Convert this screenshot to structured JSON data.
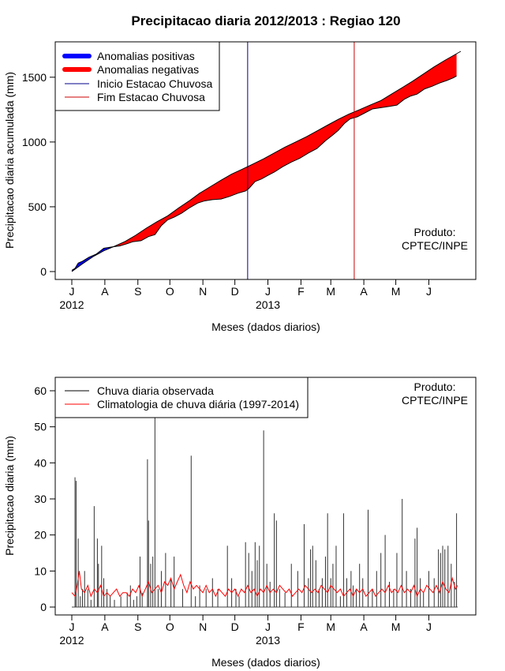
{
  "title": "Precipitacao diaria 2012/2013 : Regiao 120",
  "chart_data": [
    {
      "type": "area",
      "ylabel": "Precipitacao diaria acumulada (mm)",
      "xlabel": "Meses (dados diarios)",
      "xlim_days": [
        0,
        365
      ],
      "ylim": [
        0,
        1700
      ],
      "yticks": [
        0,
        500,
        1000,
        1500
      ],
      "month_ticks": [
        {
          "label": "J",
          "day": 0
        },
        {
          "label": "A",
          "day": 31
        },
        {
          "label": "S",
          "day": 62
        },
        {
          "label": "O",
          "day": 92
        },
        {
          "label": "N",
          "day": 123
        },
        {
          "label": "D",
          "day": 153
        },
        {
          "label": "J",
          "day": 184
        },
        {
          "label": "F",
          "day": 215
        },
        {
          "label": "M",
          "day": 243
        },
        {
          "label": "A",
          "day": 274
        },
        {
          "label": "M",
          "day": 304
        },
        {
          "label": "J",
          "day": 335
        }
      ],
      "year_labels": [
        {
          "label": "2012",
          "day": 0
        },
        {
          "label": "2013",
          "day": 184
        }
      ],
      "wet_season_start_day": 165,
      "wet_season_end_day": 265,
      "product_label": [
        "Produto:",
        "CPTEC/INPE"
      ],
      "legend": [
        {
          "label": "Anomalias positivas",
          "color": "#0000ff",
          "style": "thick"
        },
        {
          "label": "Anomalias negativas",
          "color": "#ff0000",
          "style": "thick"
        },
        {
          "label": "Inicio Estacao Chuvosa",
          "color": "#00008b",
          "style": "thin"
        },
        {
          "label": "Fim Estacao Chuvosa",
          "color": "#cc0000",
          "style": "thin"
        }
      ],
      "climatology_cumulative": [
        [
          0,
          0
        ],
        [
          10,
          60
        ],
        [
          20,
          115
        ],
        [
          30,
          160
        ],
        [
          40,
          195
        ],
        [
          50,
          232
        ],
        [
          60,
          280
        ],
        [
          70,
          335
        ],
        [
          80,
          385
        ],
        [
          90,
          430
        ],
        [
          100,
          490
        ],
        [
          110,
          545
        ],
        [
          120,
          605
        ],
        [
          130,
          655
        ],
        [
          140,
          705
        ],
        [
          150,
          752
        ],
        [
          160,
          790
        ],
        [
          170,
          830
        ],
        [
          180,
          870
        ],
        [
          190,
          915
        ],
        [
          200,
          960
        ],
        [
          210,
          1000
        ],
        [
          220,
          1040
        ],
        [
          230,
          1085
        ],
        [
          240,
          1130
        ],
        [
          250,
          1175
        ],
        [
          260,
          1215
        ],
        [
          270,
          1250
        ],
        [
          280,
          1285
        ],
        [
          290,
          1320
        ],
        [
          300,
          1370
        ],
        [
          310,
          1420
        ],
        [
          320,
          1470
        ],
        [
          330,
          1525
        ],
        [
          340,
          1580
        ],
        [
          350,
          1630
        ],
        [
          365,
          1700
        ]
      ],
      "observed_cumulative": [
        [
          0,
          10
        ],
        [
          3,
          25
        ],
        [
          6,
          65
        ],
        [
          10,
          80
        ],
        [
          16,
          110
        ],
        [
          23,
          135
        ],
        [
          30,
          180
        ],
        [
          38,
          190
        ],
        [
          45,
          198
        ],
        [
          52,
          215
        ],
        [
          57,
          230
        ],
        [
          65,
          238
        ],
        [
          72,
          270
        ],
        [
          78,
          285
        ],
        [
          84,
          355
        ],
        [
          90,
          400
        ],
        [
          96,
          420
        ],
        [
          103,
          450
        ],
        [
          110,
          490
        ],
        [
          118,
          528
        ],
        [
          124,
          545
        ],
        [
          132,
          555
        ],
        [
          140,
          560
        ],
        [
          148,
          580
        ],
        [
          156,
          605
        ],
        [
          163,
          622
        ],
        [
          166,
          640
        ],
        [
          172,
          695
        ],
        [
          178,
          715
        ],
        [
          184,
          742
        ],
        [
          190,
          768
        ],
        [
          198,
          810
        ],
        [
          206,
          845
        ],
        [
          214,
          875
        ],
        [
          222,
          915
        ],
        [
          230,
          950
        ],
        [
          238,
          1010
        ],
        [
          245,
          1055
        ],
        [
          250,
          1090
        ],
        [
          256,
          1145
        ],
        [
          261,
          1178
        ],
        [
          268,
          1195
        ],
        [
          275,
          1225
        ],
        [
          282,
          1255
        ],
        [
          290,
          1265
        ],
        [
          298,
          1275
        ],
        [
          305,
          1285
        ],
        [
          312,
          1330
        ],
        [
          318,
          1355
        ],
        [
          324,
          1370
        ],
        [
          331,
          1410
        ],
        [
          338,
          1430
        ],
        [
          345,
          1455
        ],
        [
          352,
          1475
        ],
        [
          358,
          1495
        ],
        [
          361,
          1510
        ]
      ]
    },
    {
      "type": "line",
      "ylabel": "Precipitacao diaria (mm)",
      "xlabel": "Meses (dados diarios)",
      "xlim_days": [
        0,
        365
      ],
      "ylim": [
        0,
        60
      ],
      "yticks": [
        0,
        10,
        20,
        30,
        40,
        50,
        60
      ],
      "product_label": [
        "Produto:",
        "CPTEC/INPE"
      ],
      "legend": [
        {
          "label": "Chuva diaria observada",
          "color": "#000000"
        },
        {
          "label": "Climatologia de chuva diária (1997-2014)",
          "color": "#ff0000"
        }
      ],
      "observed_spikes": [
        [
          3,
          36
        ],
        [
          4,
          35
        ],
        [
          6,
          19
        ],
        [
          8,
          3
        ],
        [
          10,
          5
        ],
        [
          12,
          10
        ],
        [
          15,
          5
        ],
        [
          18,
          2
        ],
        [
          21,
          28
        ],
        [
          24,
          19
        ],
        [
          25,
          12
        ],
        [
          28,
          17
        ],
        [
          30,
          8
        ],
        [
          33,
          5
        ],
        [
          36,
          3
        ],
        [
          40,
          2
        ],
        [
          46,
          3
        ],
        [
          52,
          4
        ],
        [
          55,
          6
        ],
        [
          58,
          2
        ],
        [
          61,
          3
        ],
        [
          64,
          14
        ],
        [
          66,
          4
        ],
        [
          71,
          41
        ],
        [
          72,
          24
        ],
        [
          74,
          12
        ],
        [
          76,
          14
        ],
        [
          78,
          53
        ],
        [
          81,
          5
        ],
        [
          84,
          10
        ],
        [
          88,
          15
        ],
        [
          93,
          8
        ],
        [
          96,
          14
        ],
        [
          104,
          5
        ],
        [
          112,
          42
        ],
        [
          116,
          3
        ],
        [
          120,
          6
        ],
        [
          126,
          5
        ],
        [
          132,
          8
        ],
        [
          137,
          5
        ],
        [
          146,
          17
        ],
        [
          150,
          8
        ],
        [
          154,
          5
        ],
        [
          157,
          3
        ],
        [
          163,
          18
        ],
        [
          166,
          15
        ],
        [
          169,
          10
        ],
        [
          172,
          18
        ],
        [
          174,
          13
        ],
        [
          176,
          17
        ],
        [
          180,
          49
        ],
        [
          183,
          12
        ],
        [
          186,
          7
        ],
        [
          190,
          26
        ],
        [
          192,
          24
        ],
        [
          195,
          5
        ],
        [
          200,
          4
        ],
        [
          206,
          12
        ],
        [
          212,
          10
        ],
        [
          218,
          23
        ],
        [
          222,
          8
        ],
        [
          224,
          16
        ],
        [
          226,
          17
        ],
        [
          229,
          13
        ],
        [
          232,
          5
        ],
        [
          235,
          8
        ],
        [
          238,
          14
        ],
        [
          240,
          26
        ],
        [
          243,
          8
        ],
        [
          245,
          12
        ],
        [
          248,
          17
        ],
        [
          252,
          3
        ],
        [
          255,
          26
        ],
        [
          258,
          8
        ],
        [
          262,
          10
        ],
        [
          264,
          6
        ],
        [
          267,
          5
        ],
        [
          270,
          12
        ],
        [
          273,
          8
        ],
        [
          278,
          27
        ],
        [
          282,
          5
        ],
        [
          286,
          10
        ],
        [
          290,
          15
        ],
        [
          294,
          20
        ],
        [
          298,
          7
        ],
        [
          302,
          5
        ],
        [
          305,
          15
        ],
        [
          310,
          30
        ],
        [
          314,
          10
        ],
        [
          318,
          5
        ],
        [
          322,
          19
        ],
        [
          324,
          22
        ],
        [
          327,
          8
        ],
        [
          330,
          4
        ],
        [
          335,
          10
        ],
        [
          340,
          8
        ],
        [
          344,
          16
        ],
        [
          346,
          15
        ],
        [
          348,
          17
        ],
        [
          350,
          16
        ],
        [
          353,
          17
        ],
        [
          356,
          12
        ],
        [
          359,
          7
        ],
        [
          361,
          26
        ]
      ],
      "climatology_daily": [
        [
          0,
          4
        ],
        [
          3,
          3
        ],
        [
          5,
          6
        ],
        [
          7,
          10
        ],
        [
          9,
          5
        ],
        [
          12,
          4
        ],
        [
          15,
          6
        ],
        [
          18,
          3
        ],
        [
          21,
          5
        ],
        [
          24,
          4
        ],
        [
          27,
          6
        ],
        [
          30,
          3
        ],
        [
          33,
          4
        ],
        [
          36,
          3
        ],
        [
          39,
          4
        ],
        [
          42,
          5
        ],
        [
          45,
          3
        ],
        [
          48,
          4
        ],
        [
          51,
          4
        ],
        [
          54,
          3
        ],
        [
          57,
          5
        ],
        [
          60,
          4
        ],
        [
          63,
          6
        ],
        [
          66,
          3
        ],
        [
          69,
          5
        ],
        [
          72,
          7
        ],
        [
          75,
          4
        ],
        [
          78,
          5
        ],
        [
          81,
          6
        ],
        [
          84,
          4
        ],
        [
          87,
          7
        ],
        [
          90,
          6
        ],
        [
          93,
          8
        ],
        [
          96,
          5
        ],
        [
          99,
          7
        ],
        [
          102,
          9
        ],
        [
          105,
          6
        ],
        [
          108,
          4
        ],
        [
          111,
          7
        ],
        [
          114,
          5
        ],
        [
          117,
          6
        ],
        [
          120,
          5
        ],
        [
          123,
          4
        ],
        [
          126,
          6
        ],
        [
          129,
          4
        ],
        [
          132,
          5
        ],
        [
          135,
          3
        ],
        [
          138,
          5
        ],
        [
          141,
          4
        ],
        [
          144,
          3
        ],
        [
          147,
          5
        ],
        [
          150,
          4
        ],
        [
          153,
          5
        ],
        [
          156,
          3
        ],
        [
          159,
          5
        ],
        [
          162,
          4
        ],
        [
          165,
          6
        ],
        [
          168,
          4
        ],
        [
          171,
          5
        ],
        [
          174,
          3
        ],
        [
          177,
          5
        ],
        [
          180,
          4
        ],
        [
          183,
          6
        ],
        [
          186,
          4
        ],
        [
          189,
          5
        ],
        [
          192,
          4
        ],
        [
          195,
          6
        ],
        [
          198,
          5
        ],
        [
          201,
          4
        ],
        [
          204,
          5
        ],
        [
          207,
          3
        ],
        [
          210,
          4
        ],
        [
          213,
          5
        ],
        [
          216,
          4
        ],
        [
          219,
          6
        ],
        [
          222,
          5
        ],
        [
          225,
          4
        ],
        [
          228,
          5
        ],
        [
          231,
          4
        ],
        [
          234,
          6
        ],
        [
          237,
          5
        ],
        [
          240,
          4
        ],
        [
          243,
          6
        ],
        [
          246,
          5
        ],
        [
          249,
          4
        ],
        [
          252,
          5
        ],
        [
          255,
          3
        ],
        [
          258,
          4
        ],
        [
          261,
          5
        ],
        [
          264,
          3
        ],
        [
          267,
          5
        ],
        [
          270,
          4
        ],
        [
          273,
          5
        ],
        [
          276,
          3
        ],
        [
          279,
          4
        ],
        [
          282,
          5
        ],
        [
          285,
          3
        ],
        [
          288,
          4
        ],
        [
          291,
          5
        ],
        [
          294,
          4
        ],
        [
          297,
          6
        ],
        [
          300,
          4
        ],
        [
          303,
          5
        ],
        [
          306,
          4
        ],
        [
          309,
          6
        ],
        [
          312,
          4
        ],
        [
          315,
          5
        ],
        [
          318,
          4
        ],
        [
          321,
          6
        ],
        [
          324,
          3
        ],
        [
          327,
          5
        ],
        [
          330,
          4
        ],
        [
          333,
          6
        ],
        [
          336,
          5
        ],
        [
          339,
          4
        ],
        [
          342,
          6
        ],
        [
          345,
          4
        ],
        [
          348,
          7
        ],
        [
          351,
          5
        ],
        [
          354,
          4
        ],
        [
          357,
          8
        ],
        [
          360,
          5
        ],
        [
          362,
          6
        ]
      ]
    }
  ]
}
